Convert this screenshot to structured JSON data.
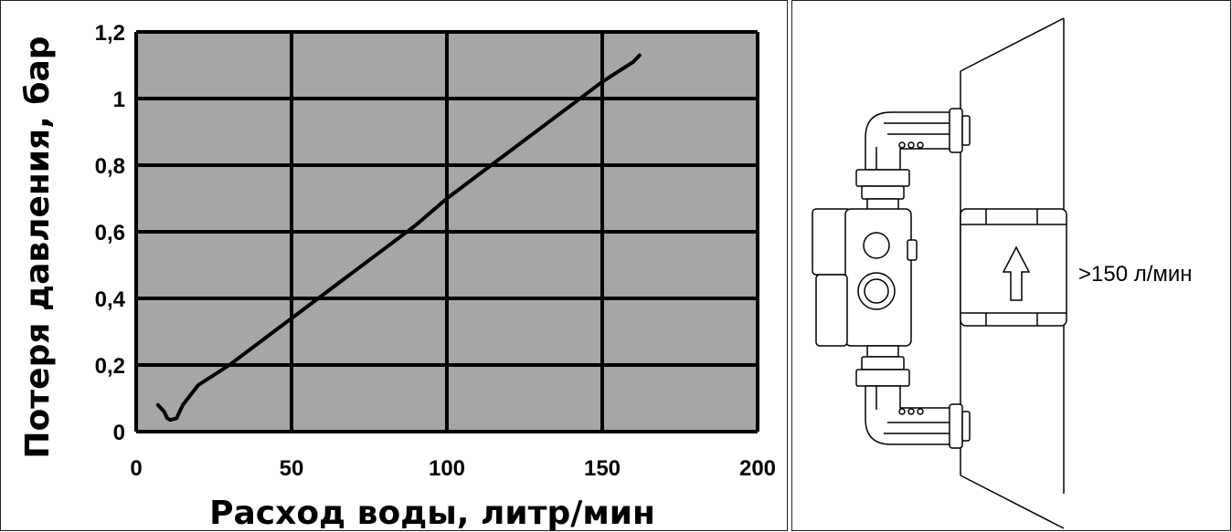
{
  "chart_data": {
    "type": "line",
    "xlabel": "Расход воды, литр/мин",
    "ylabel": "Потеря давления, бар",
    "xlim": [
      0,
      200
    ],
    "ylim": [
      0,
      1.2
    ],
    "x_ticks": [
      "0",
      "50",
      "100",
      "150",
      "200"
    ],
    "y_ticks": [
      "0",
      "0,2",
      "0,4",
      "0,6",
      "0,8",
      "1",
      "1,2"
    ],
    "grid": true,
    "background_color": "#a6a6a6",
    "line_color": "#000000",
    "series": [
      {
        "x": [
          7,
          9,
          10,
          11,
          13,
          15,
          20,
          30,
          40,
          50,
          60,
          70,
          80,
          90,
          100,
          110,
          120,
          130,
          140,
          150,
          160,
          162
        ],
        "y": [
          0.08,
          0.06,
          0.04,
          0.035,
          0.04,
          0.08,
          0.14,
          0.2,
          0.27,
          0.34,
          0.41,
          0.48,
          0.55,
          0.62,
          0.7,
          0.77,
          0.84,
          0.91,
          0.98,
          1.05,
          1.11,
          1.13
        ]
      }
    ]
  },
  "device": {
    "flow_label": ">150 л/мин",
    "arrow_icon": "up-arrow-icon"
  }
}
